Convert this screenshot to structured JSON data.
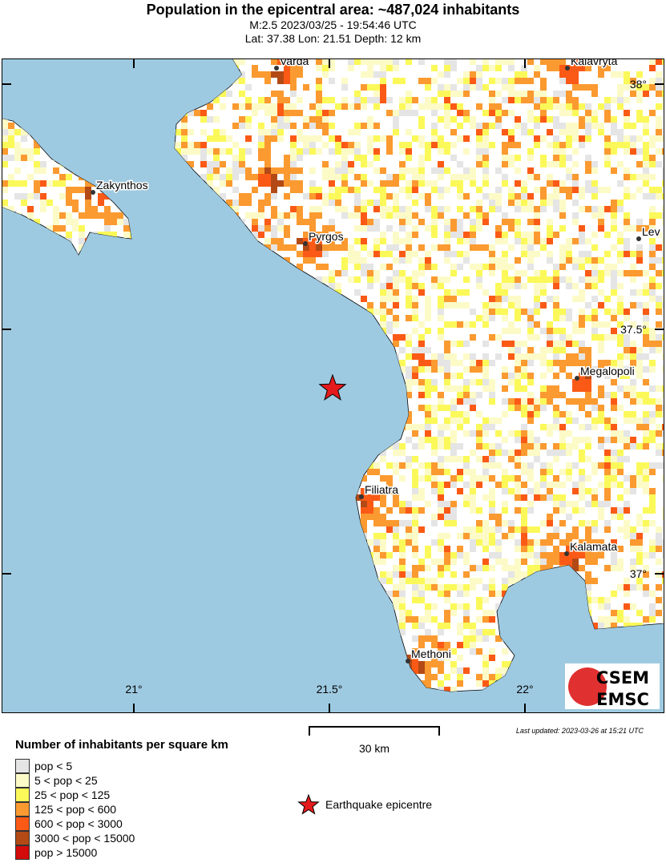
{
  "header": {
    "title": "Population in the epicentral area: ~487,024 inhabitants",
    "line1": "M:2.5 2023/03/25 - 19:54:46 UTC",
    "line2": "Lat: 37.38 Lon: 21.51 Depth: 12 km"
  },
  "map": {
    "colors": {
      "sea": "#9ecae1",
      "land": "#ffffff",
      "epicentre": "#e41a1c"
    },
    "lat_ticks": [
      "38°",
      "37.5°",
      "37°"
    ],
    "lon_ticks": [
      "21°",
      "21.5°",
      "22°"
    ],
    "cities": [
      "Varda",
      "Kalavryta",
      "Zakynthos",
      "Pyrgos",
      "Lev",
      "Megalopoli",
      "Filiatra",
      "Kalamata",
      "Methoni"
    ],
    "logo": {
      "top": "CSEM",
      "bottom": "EMSC"
    }
  },
  "legend": {
    "title": "Number of inhabitants per square km",
    "items": [
      {
        "label": "pop < 5",
        "color": "#e5e5e5"
      },
      {
        "label": "5 < pop < 25",
        "color": "#fcfbc8"
      },
      {
        "label": "25 < pop < 125",
        "color": "#fbf95a"
      },
      {
        "label": "125 < pop < 600",
        "color": "#fb9a30"
      },
      {
        "label": "600 < pop < 3000",
        "color": "#fb5a16"
      },
      {
        "label": "3000 < pop < 15000",
        "color": "#b34a15"
      },
      {
        "label": "pop > 15000",
        "color": "#d30b0b"
      }
    ]
  },
  "scale": {
    "label": "30 km"
  },
  "epicentre_label": "Earthquake epicentre",
  "updated": "Last updated: 2023-03-26 at 15:21 UTC"
}
